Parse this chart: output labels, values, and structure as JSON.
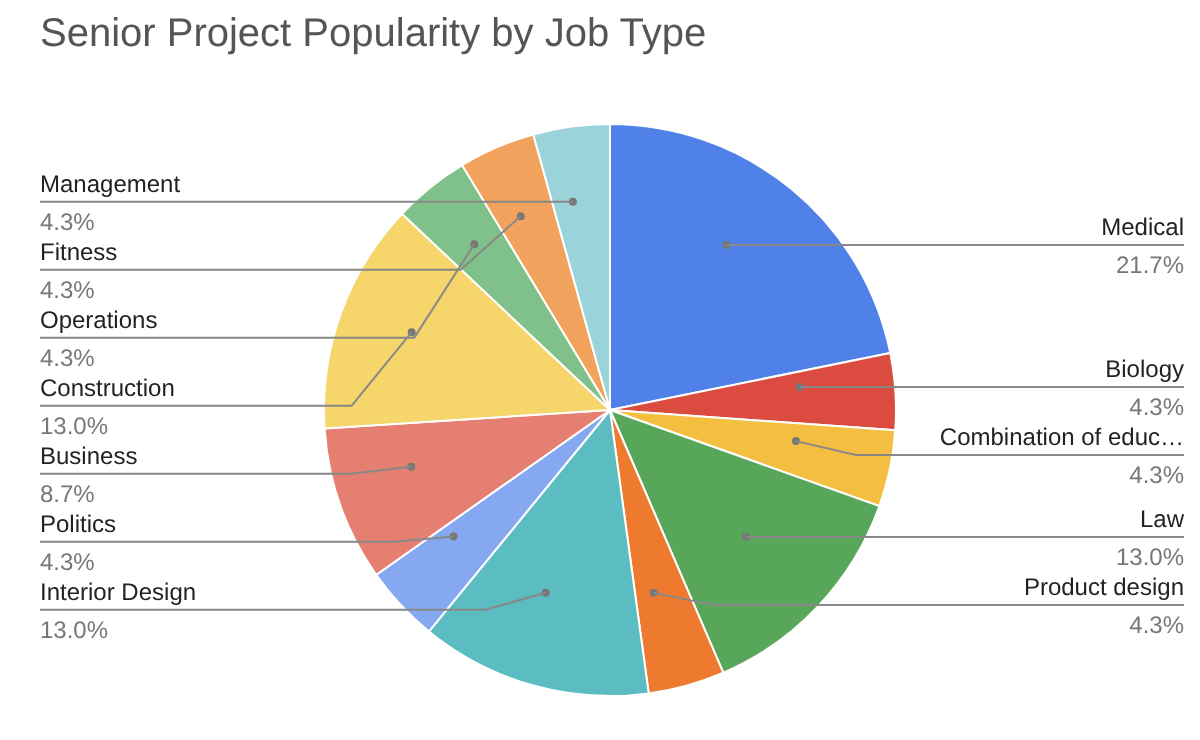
{
  "chart_data": {
    "type": "pie",
    "title": "Senior Project Popularity by Job Type",
    "categories": [
      "Medical",
      "Biology",
      "Combination of educ…",
      "Law",
      "Product design",
      "Interior Design",
      "Politics",
      "Business",
      "Construction",
      "Operations",
      "Fitness",
      "Management"
    ],
    "values": [
      21.7,
      4.3,
      4.3,
      13.0,
      4.3,
      13.0,
      4.3,
      8.7,
      13.0,
      4.3,
      4.3,
      4.3
    ],
    "value_labels": [
      "21.7%",
      "4.3%",
      "4.3%",
      "13.0%",
      "4.3%",
      "13.0%",
      "4.3%",
      "8.7%",
      "13.0%",
      "4.3%",
      "4.3%",
      "4.3%"
    ],
    "colors": [
      "#4f81e8",
      "#db4b3f",
      "#f4be41",
      "#57a65a",
      "#ee7a30",
      "#5bbcc1",
      "#86a8f0",
      "#e57f72",
      "#f6d56a",
      "#80c08a",
      "#f1a35e",
      "#9ad3d9"
    ],
    "legend": false
  }
}
